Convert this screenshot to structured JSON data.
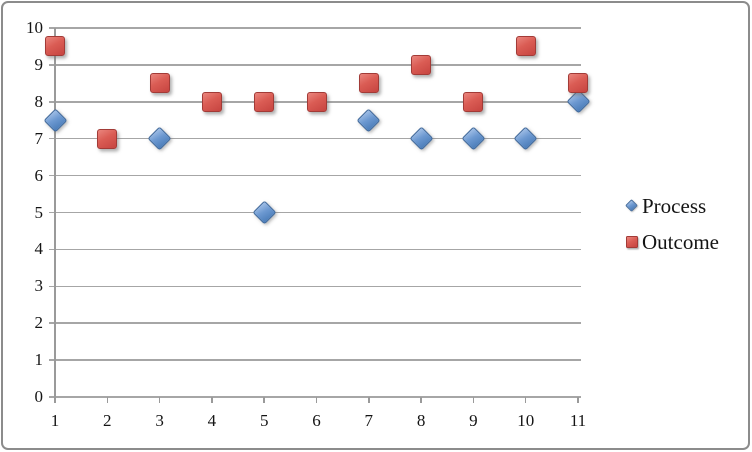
{
  "chart_data": {
    "type": "scatter",
    "title": "",
    "xlabel": "",
    "ylabel": "",
    "x_tick_labels": [
      "1",
      "2",
      "3",
      "4",
      "5",
      "6",
      "7",
      "8",
      "9",
      "10",
      "11"
    ],
    "y_tick_labels": [
      "0",
      "1",
      "2",
      "3",
      "4",
      "5",
      "6",
      "7",
      "8",
      "9",
      "10"
    ],
    "xlim_ticks": [
      1,
      11
    ],
    "ylim": [
      0,
      10
    ],
    "grid": true,
    "legend_position": "right",
    "series": [
      {
        "name": "Process",
        "marker": "diamond",
        "fill_color": "#5e8fcb",
        "border_color": "#3e6799",
        "points": [
          [
            1,
            7.5
          ],
          [
            3,
            7
          ],
          [
            5,
            5
          ],
          [
            7,
            7.5
          ],
          [
            8,
            7
          ],
          [
            9,
            7
          ],
          [
            10,
            7
          ],
          [
            11,
            8
          ]
        ]
      },
      {
        "name": "Outcome",
        "marker": "square",
        "fill_color": "#d6574f",
        "border_color": "#a23b37",
        "points": [
          [
            1,
            9.5
          ],
          [
            2,
            7
          ],
          [
            3,
            8.5
          ],
          [
            4,
            8
          ],
          [
            5,
            8
          ],
          [
            6,
            8
          ],
          [
            7,
            8.5
          ],
          [
            8,
            9
          ],
          [
            9,
            8
          ],
          [
            10,
            9.5
          ],
          [
            11,
            8.5
          ]
        ]
      }
    ],
    "colors": {
      "gridline": "#a6a6a6",
      "axis": "#9a9a9a",
      "text": "#141414",
      "frame_border": "#8c8c8c",
      "background": "#ffffff"
    }
  }
}
